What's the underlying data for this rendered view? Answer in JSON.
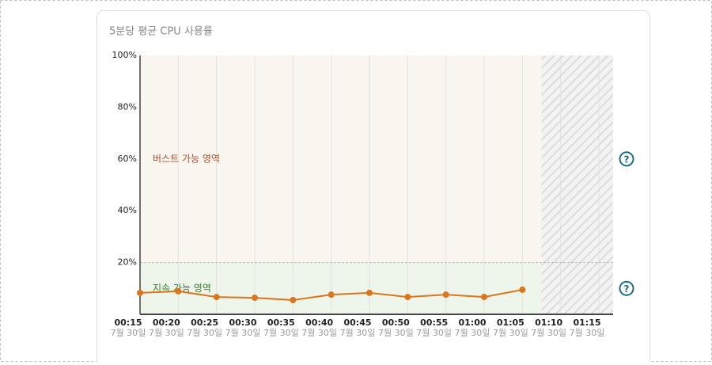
{
  "chart_data": {
    "type": "line",
    "title": "5분당 평균 CPU 사용률",
    "categories": [
      "00:15",
      "00:20",
      "00:25",
      "00:30",
      "00:35",
      "00:40",
      "00:45",
      "00:50",
      "00:55",
      "01:00",
      "01:05",
      "01:10",
      "01:15"
    ],
    "date_label": "7월 30일",
    "series": [
      {
        "name": "CPU",
        "color": "#d9761e",
        "values": [
          8.3,
          8.9,
          6.7,
          6.4,
          5.5,
          7.6,
          8.3,
          6.7,
          7.6,
          6.7,
          9.5,
          null,
          null
        ]
      }
    ],
    "zones": [
      {
        "label": "버스트 가능 영역",
        "from": 20,
        "to": 100,
        "color": "#fbf5ef",
        "text_color": "#a0522d"
      },
      {
        "label": "지속 가능 영역",
        "from": 0,
        "to": 20,
        "color": "#eef5ea",
        "text_color": "#3d7a2f"
      }
    ],
    "ylim": [
      0,
      100
    ],
    "yticks": [
      {
        "value": 20,
        "label": "20%"
      },
      {
        "value": 40,
        "label": "40%"
      },
      {
        "value": 60,
        "label": "60%"
      },
      {
        "value": 80,
        "label": "80%"
      },
      {
        "value": 100,
        "label": "100%"
      }
    ],
    "grid": true
  }
}
